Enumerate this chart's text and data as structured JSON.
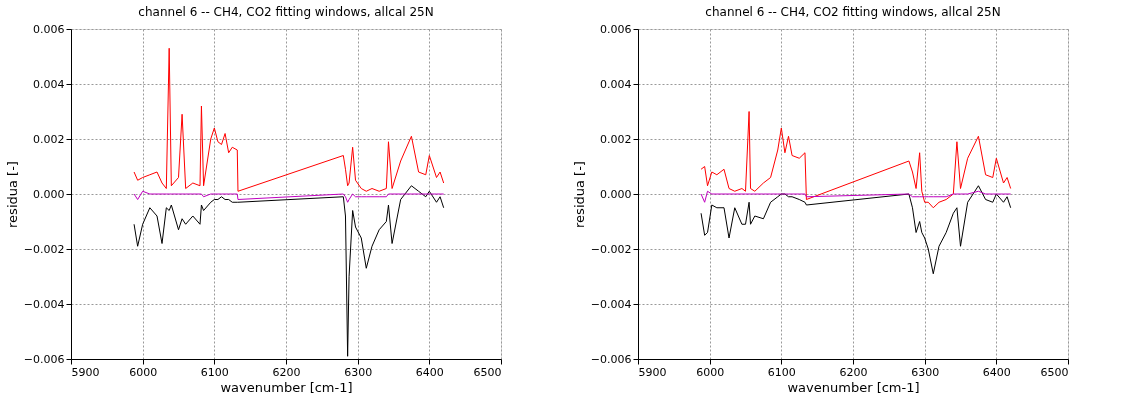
{
  "chart_data": [
    {
      "type": "line",
      "title": "channel 6 -- CH4, CO2 fitting windows, allcal 25N",
      "xlabel": "wavenumber [cm-1]",
      "ylabel": "residua [-]",
      "x": [
        5988,
        5993,
        6000,
        6010,
        6020,
        6027,
        6033,
        6037,
        6040,
        6050,
        6055,
        6060,
        6070,
        6080,
        6082,
        6085,
        6095,
        6100,
        6105,
        6110,
        6115,
        6120,
        6125,
        6132,
        6133,
        6280,
        6283,
        6286,
        6288,
        6293,
        6297,
        6305,
        6312,
        6320,
        6330,
        6340,
        6343,
        6348,
        6360,
        6375,
        6385,
        6395,
        6400,
        6410,
        6415,
        6420
      ],
      "series": [
        {
          "color": "#ff0000",
          "values": [
            0.0008,
            0.0005,
            0.0006,
            0.0007,
            0.0008,
            0.0004,
            0.0002,
            0.0053,
            0.0003,
            0.0006,
            0.0029,
            0.0002,
            0.0004,
            0.0003,
            0.0032,
            0.0003,
            0.002,
            0.0024,
            0.0019,
            0.0018,
            0.0022,
            0.0015,
            0.0017,
            0.0016,
            0.0001,
            0.0014,
            0.0009,
            0.0003,
            0.0004,
            0.0017,
            0.0005,
            0.0002,
            0.0001,
            0.0002,
            0.0001,
            0.0002,
            0.0019,
            0.0002,
            0.0012,
            0.0021,
            0.0008,
            0.0007,
            0.0014,
            0.0006,
            0.0008,
            0.0004
          ]
        },
        {
          "color": "#000000",
          "values": [
            -0.0011,
            -0.0019,
            -0.0011,
            -0.0005,
            -0.0008,
            -0.0018,
            -0.0005,
            -0.0006,
            -0.0004,
            -0.0013,
            -0.0009,
            -0.0011,
            -0.0008,
            -0.0011,
            -0.0004,
            -0.0006,
            -0.0003,
            -0.0002,
            -0.0002,
            -0.0001,
            -0.0002,
            -0.0002,
            -0.0003,
            -0.0003,
            -0.0003,
            -0.0001,
            -0.0008,
            -0.0059,
            -0.003,
            -0.0006,
            -0.0012,
            -0.0016,
            -0.0027,
            -0.0019,
            -0.0013,
            -0.001,
            -0.0004,
            -0.0018,
            -0.0002,
            0.0003,
            0.0001,
            -0.0001,
            0.0001,
            -0.0003,
            -0.0001,
            -0.0005
          ]
        },
        {
          "color": "#bf00bf",
          "values": [
            0.0,
            -0.0002,
            0.0001,
            0.0,
            0.0,
            0.0,
            0.0,
            0.0,
            0.0,
            0.0,
            0.0,
            0.0,
            0.0,
            0.0,
            0.0,
            -0.0001,
            0.0,
            0.0,
            0.0,
            0.0,
            0.0,
            0.0,
            0.0,
            0.0,
            -0.0002,
            0.0,
            -0.0001,
            -0.0003,
            -0.0002,
            0.0,
            -0.0001,
            -0.0001,
            -0.0001,
            -0.0001,
            -0.0001,
            -0.0001,
            0.0,
            0.0,
            0.0,
            0.0,
            0.0,
            0.0,
            0.0,
            0.0,
            0.0,
            0.0
          ]
        }
      ],
      "xlim": [
        5900,
        6500
      ],
      "xticks": [
        5900,
        6000,
        6100,
        6200,
        6300,
        6400,
        6500
      ],
      "ylim": [
        -0.006,
        0.006
      ],
      "yticks": [
        {
          "value": -0.006,
          "label": "−0.006"
        },
        {
          "value": -0.004,
          "label": "−0.004"
        },
        {
          "value": -0.002,
          "label": "−0.002"
        },
        {
          "value": 0,
          "label": "0.000"
        },
        {
          "value": 0.002,
          "label": "0.002"
        },
        {
          "value": 0.004,
          "label": "0.004"
        },
        {
          "value": 0.006,
          "label": "0.006"
        }
      ],
      "grid": true,
      "legend": false,
      "marker": "none",
      "line_style": "solid"
    },
    {
      "type": "line",
      "title": "channel 6 -- CH4, CO2 fitting windows, allcal 25N",
      "xlabel": "wavenumber [cm-1]",
      "ylabel": "residua [-]",
      "x": [
        5988,
        5993,
        5997,
        6003,
        6010,
        6020,
        6027,
        6035,
        6045,
        6050,
        6055,
        6057,
        6063,
        6075,
        6085,
        6095,
        6100,
        6105,
        6110,
        6115,
        6125,
        6133,
        6135,
        6278,
        6283,
        6288,
        6293,
        6296,
        6300,
        6305,
        6312,
        6320,
        6330,
        6340,
        6345,
        6350,
        6360,
        6375,
        6385,
        6395,
        6400,
        6410,
        6415,
        6420
      ],
      "series": [
        {
          "color": "#ff0000",
          "values": [
            0.0009,
            0.001,
            0.0003,
            0.0008,
            0.0007,
            0.0009,
            0.0002,
            0.0001,
            0.0002,
            0.0001,
            0.003,
            0.0002,
            0.0001,
            0.0004,
            0.0006,
            0.0016,
            0.0024,
            0.0015,
            0.0021,
            0.0014,
            0.0013,
            0.0015,
            -0.0002,
            0.0012,
            0.0008,
            0.0002,
            0.0015,
            0.0001,
            -0.0003,
            -0.0003,
            -0.0005,
            -0.0003,
            -0.0002,
            0.0,
            0.0019,
            0.0002,
            0.0013,
            0.0021,
            0.0007,
            0.0006,
            0.0013,
            0.0004,
            0.0006,
            0.0002
          ]
        },
        {
          "color": "#000000",
          "values": [
            -0.0007,
            -0.0015,
            -0.0014,
            -0.0004,
            -0.0005,
            -0.0005,
            -0.0016,
            -0.0005,
            -0.0011,
            -0.0011,
            -0.0003,
            -0.0011,
            -0.0008,
            -0.0009,
            -0.0003,
            -0.0001,
            0.0,
            0.0,
            -0.0001,
            -0.0001,
            -0.0002,
            -0.0003,
            -0.0004,
            0.0,
            -0.0005,
            -0.0014,
            -0.001,
            -0.0014,
            -0.0016,
            -0.002,
            -0.0029,
            -0.0019,
            -0.0014,
            -0.0007,
            -0.0005,
            -0.0019,
            -0.0003,
            0.0003,
            -0.0002,
            -0.0003,
            0.0,
            -0.0003,
            -0.0001,
            -0.0005
          ]
        },
        {
          "color": "#bf00bf",
          "values": [
            0.0,
            -0.0003,
            0.0001,
            0.0,
            0.0,
            0.0,
            0.0,
            0.0,
            0.0,
            0.0,
            0.0,
            0.0,
            0.0,
            0.0,
            0.0,
            0.0,
            0.0,
            0.0,
            0.0,
            0.0,
            0.0,
            0.0,
            -0.0001,
            0.0,
            -0.0001,
            -0.0001,
            -0.0001,
            -0.0001,
            -0.0001,
            -0.0001,
            -0.0001,
            -0.0001,
            -0.0001,
            0.0,
            0.0,
            0.0,
            0.0,
            0.0001,
            0.0,
            0.0,
            0.0,
            0.0,
            0.0,
            0.0
          ]
        }
      ],
      "xlim": [
        5900,
        6500
      ],
      "xticks": [
        5900,
        6000,
        6100,
        6200,
        6300,
        6400,
        6500
      ],
      "ylim": [
        -0.006,
        0.006
      ],
      "yticks": [
        {
          "value": -0.006,
          "label": "−0.006"
        },
        {
          "value": -0.004,
          "label": "−0.004"
        },
        {
          "value": -0.002,
          "label": "−0.002"
        },
        {
          "value": 0,
          "label": "0.000"
        },
        {
          "value": 0.002,
          "label": "0.002"
        },
        {
          "value": 0.004,
          "label": "0.004"
        },
        {
          "value": 0.006,
          "label": "0.006"
        }
      ],
      "grid": true,
      "legend": false,
      "marker": "none",
      "line_style": "solid"
    }
  ]
}
